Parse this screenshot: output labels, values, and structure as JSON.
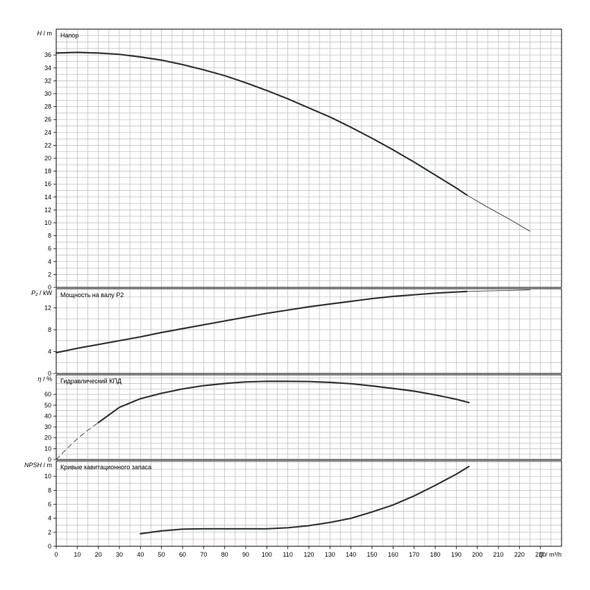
{
  "chart_data": [
    {
      "type": "line",
      "title": "Напор",
      "ylabel_symbol": "H",
      "ylabel_unit": "m",
      "ylim": [
        0,
        40
      ],
      "yticks": [
        0,
        2,
        4,
        6,
        8,
        10,
        12,
        14,
        16,
        18,
        20,
        22,
        24,
        26,
        28,
        30,
        32,
        34,
        36
      ],
      "grid": true,
      "series": [
        {
          "style": "thick",
          "x": [
            0,
            10,
            20,
            30,
            40,
            50,
            60,
            70,
            80,
            90,
            100,
            110,
            120,
            130,
            140,
            150,
            160,
            170,
            180,
            190,
            195
          ],
          "y": [
            36.3,
            36.4,
            36.3,
            36.1,
            35.7,
            35.2,
            34.5,
            33.7,
            32.8,
            31.7,
            30.5,
            29.2,
            27.8,
            26.4,
            24.8,
            23.1,
            21.3,
            19.4,
            17.4,
            15.4,
            14.3
          ]
        },
        {
          "style": "thin",
          "x": [
            195,
            205,
            215,
            225
          ],
          "y": [
            14.3,
            12.4,
            10.6,
            8.7
          ]
        }
      ]
    },
    {
      "type": "line",
      "title": "Мощность на валу P2",
      "ylabel_symbol": "P₂",
      "ylabel_unit": "kW",
      "ylim": [
        0,
        15.5
      ],
      "yticks": [
        0,
        4,
        8,
        12
      ],
      "grid": true,
      "series": [
        {
          "style": "thick",
          "x": [
            0,
            10,
            20,
            30,
            40,
            50,
            60,
            70,
            80,
            90,
            100,
            110,
            120,
            130,
            140,
            150,
            160,
            170,
            180,
            190,
            195
          ],
          "y": [
            3.8,
            4.6,
            5.3,
            6.0,
            6.7,
            7.5,
            8.2,
            8.9,
            9.6,
            10.3,
            11.0,
            11.6,
            12.2,
            12.7,
            13.2,
            13.7,
            14.1,
            14.4,
            14.7,
            14.9,
            15.0
          ]
        },
        {
          "style": "thin",
          "x": [
            195,
            205,
            215,
            225
          ],
          "y": [
            15.0,
            15.1,
            15.2,
            15.3
          ]
        }
      ]
    },
    {
      "type": "line",
      "title": "Гидравлический КПД",
      "ylabel_symbol": "η",
      "ylabel_unit": "%",
      "ylim": [
        0,
        78
      ],
      "yticks": [
        0,
        10,
        20,
        30,
        40,
        50,
        60
      ],
      "grid": true,
      "series": [
        {
          "style": "dashed",
          "x": [
            0,
            5,
            10,
            15,
            20
          ],
          "y": [
            0,
            10,
            19,
            27,
            34
          ]
        },
        {
          "style": "thick",
          "x": [
            20,
            30,
            40,
            50,
            60,
            70,
            80,
            90,
            100,
            110,
            120,
            130,
            140,
            150,
            160,
            170,
            180,
            190,
            196
          ],
          "y": [
            34,
            48,
            56,
            61,
            65,
            68,
            70,
            71.5,
            72,
            72,
            71.8,
            71,
            69.8,
            67.8,
            65.5,
            63,
            59.5,
            55.5,
            52.5
          ]
        }
      ]
    },
    {
      "type": "line",
      "title": "Кривые кавитационного запаса",
      "ylabel_symbol": "NPSH",
      "ylabel_unit": "m",
      "ylim": [
        0,
        12.2
      ],
      "yticks": [
        0,
        2,
        4,
        6,
        8,
        10
      ],
      "grid": true,
      "series": [
        {
          "style": "thick",
          "x": [
            40,
            50,
            60,
            70,
            80,
            90,
            100,
            110,
            120,
            130,
            140,
            150,
            160,
            170,
            180,
            190,
            196
          ],
          "y": [
            1.8,
            2.2,
            2.45,
            2.5,
            2.5,
            2.5,
            2.5,
            2.65,
            2.95,
            3.4,
            4.0,
            4.9,
            5.9,
            7.2,
            8.7,
            10.3,
            11.4
          ]
        }
      ]
    }
  ],
  "x_axis": {
    "ticks": [
      0,
      10,
      20,
      30,
      40,
      50,
      60,
      70,
      80,
      90,
      100,
      110,
      120,
      130,
      140,
      150,
      160,
      170,
      180,
      190,
      200,
      210,
      220,
      230
    ],
    "xlim": [
      0,
      240
    ],
    "label_symbol": "Q",
    "label_unit": "m³/h"
  },
  "colors": {
    "curve": "#2f3437",
    "grid": "#b9b9b9",
    "axis": "#000000"
  }
}
